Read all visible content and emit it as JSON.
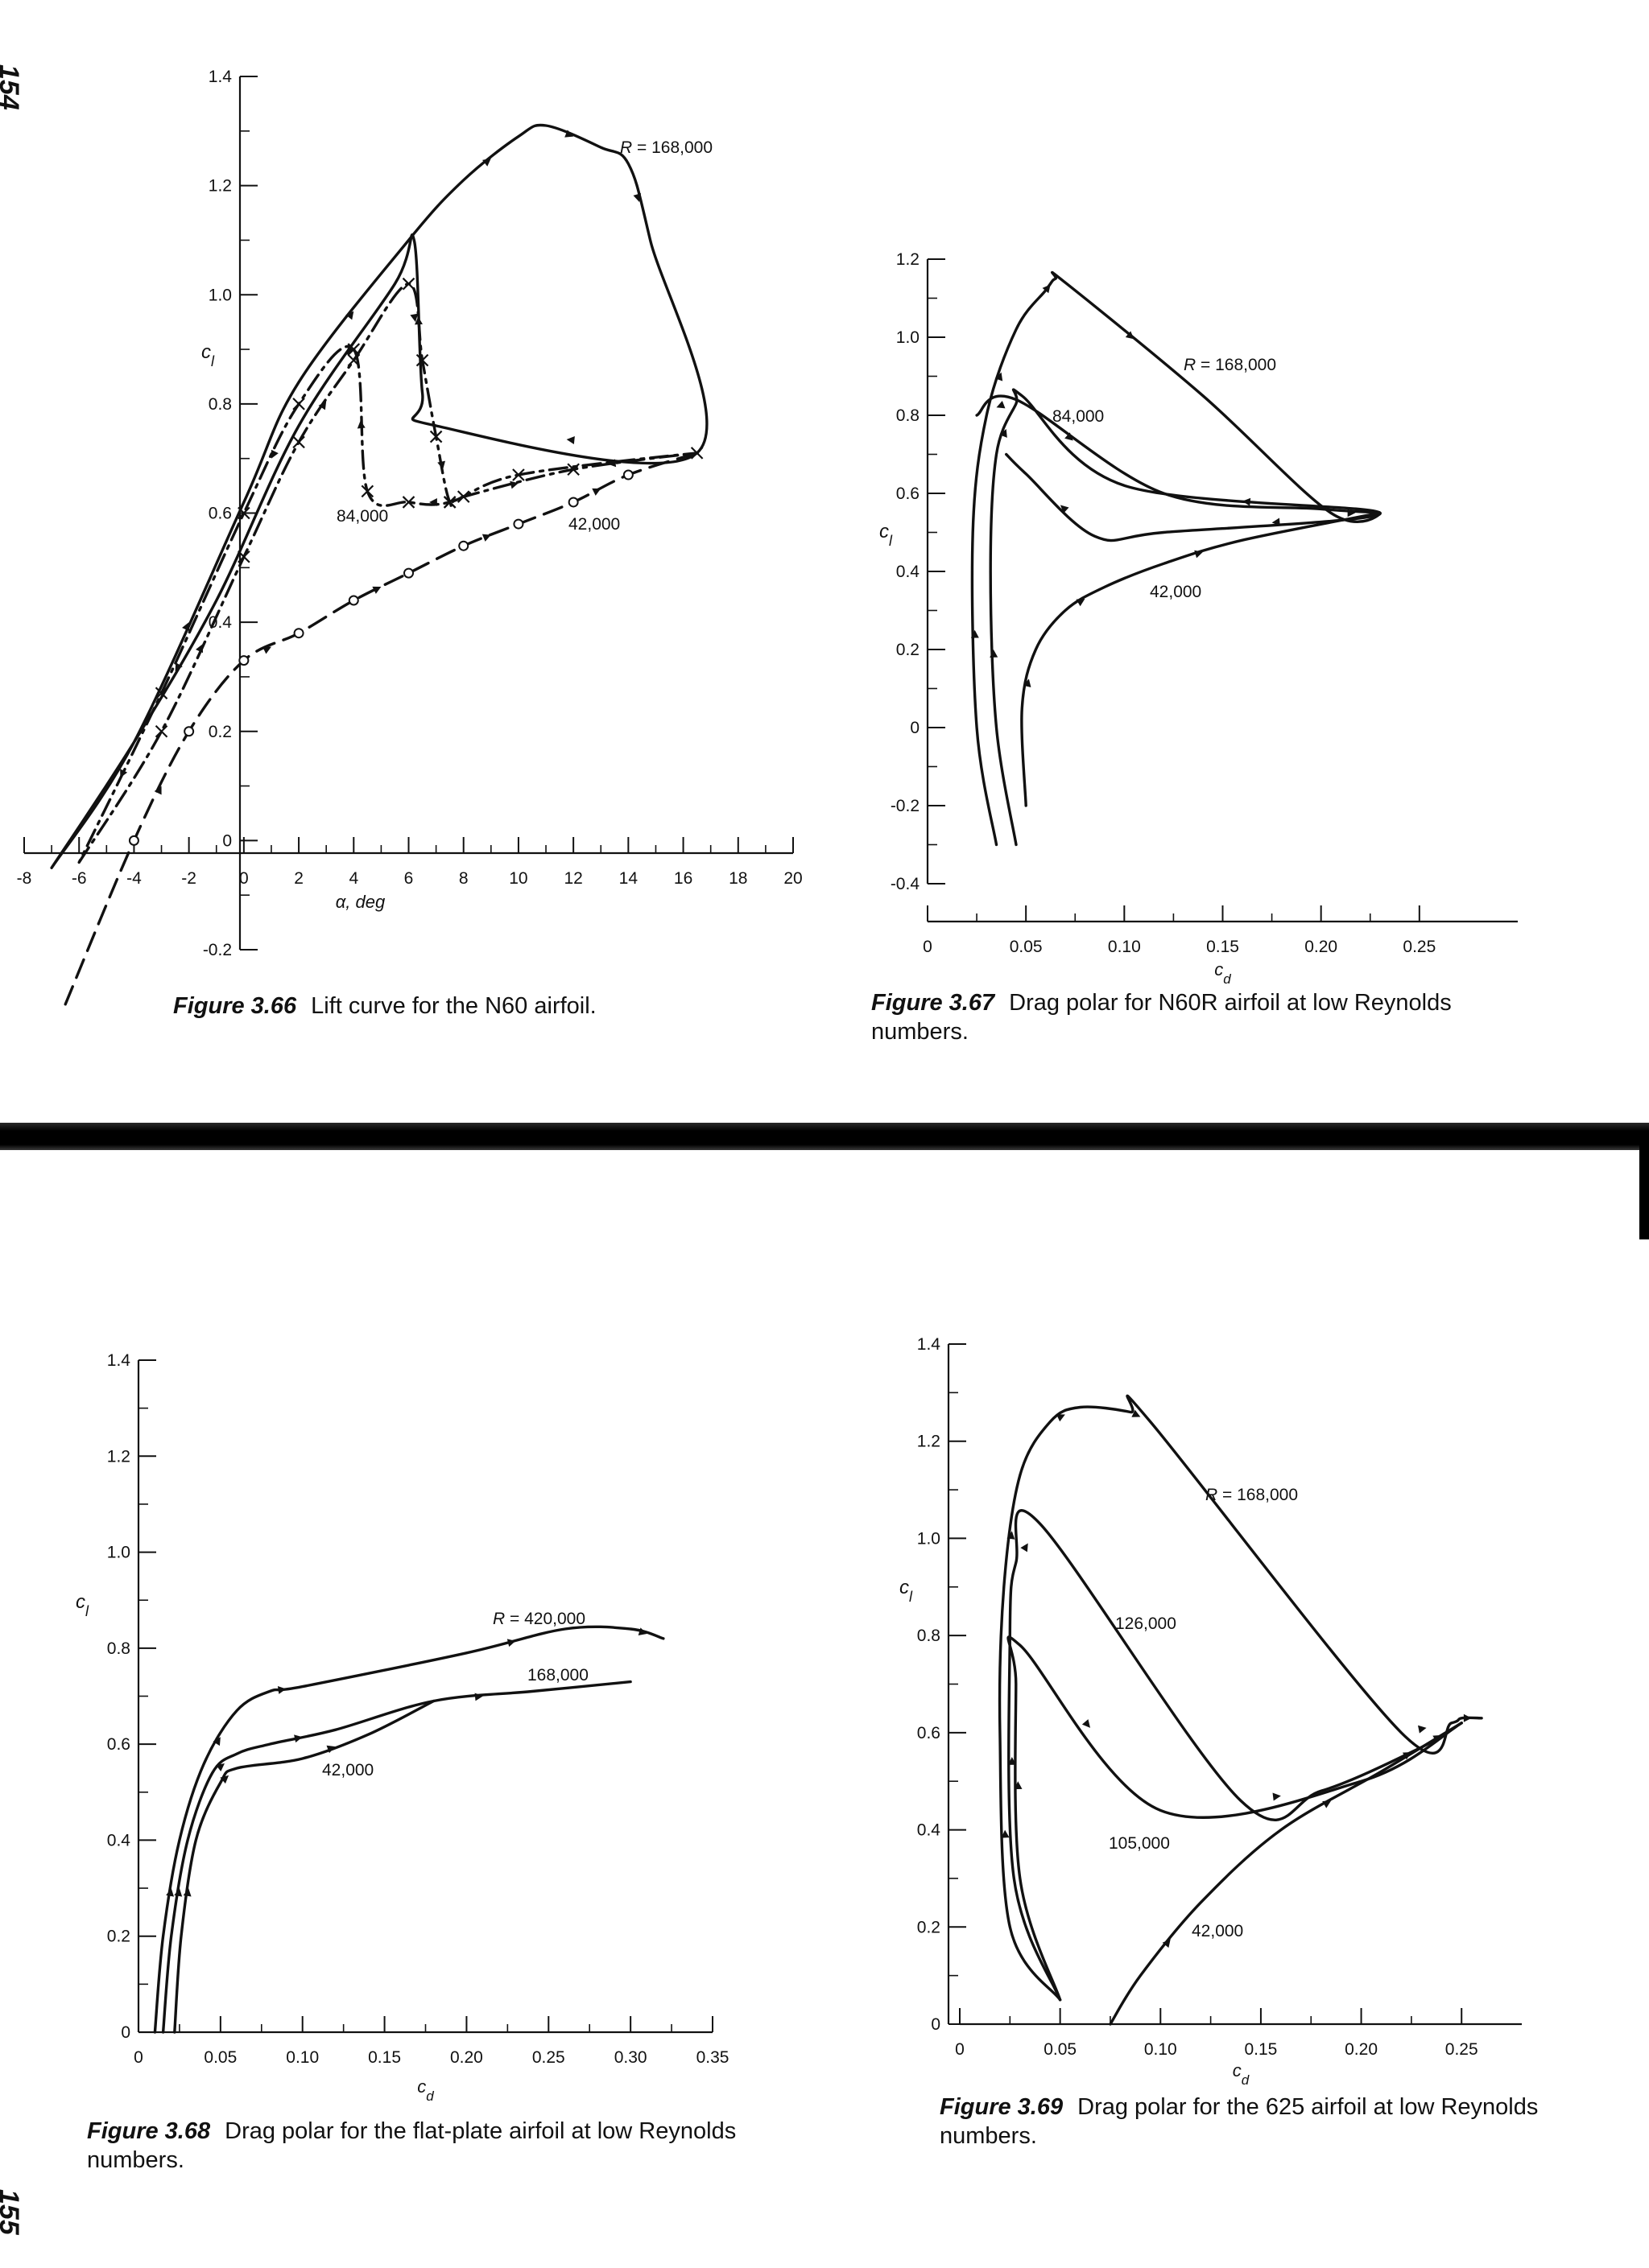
{
  "pages": {
    "top": "154",
    "bottom": "155"
  },
  "captions": [
    {
      "number": "Figure 3.66",
      "text": "Lift curve for the N60 airfoil."
    },
    {
      "number": "Figure 3.67",
      "text": "Drag polar for N60R airfoil at low Reynolds numbers."
    },
    {
      "number": "Figure 3.68",
      "text": "Drag polar for the flat-plate airfoil at low Reynolds numbers."
    },
    {
      "number": "Figure 3.69",
      "text": "Drag polar for the 625 airfoil at low Reynolds numbers."
    }
  ],
  "colors": {
    "ink": "#111111",
    "paper": "#ffffff"
  },
  "chart_data": [
    {
      "id": "fig366",
      "type": "line",
      "xlabel": "α, deg",
      "ylabel": "c_l",
      "xlim": [
        -8,
        20
      ],
      "ylim": [
        -0.2,
        1.4
      ],
      "xticks": [
        -8,
        -6,
        -4,
        -2,
        0,
        2,
        4,
        6,
        8,
        10,
        12,
        14,
        16,
        18,
        20
      ],
      "yticks": [
        -0.2,
        0,
        0.2,
        0.4,
        0.6,
        0.8,
        1.0,
        1.2,
        1.4
      ],
      "ytick_labels": [
        "-0.2",
        "0",
        "0.2",
        "0.4",
        "0.6",
        "0.8",
        "1.0",
        "1.2",
        "1.4"
      ],
      "series": [
        {
          "name": "R = 168,000",
          "style": "solid",
          "x": [
            -7,
            -4,
            0,
            2,
            6,
            8,
            10,
            11,
            13,
            14,
            14.8,
            16.5,
            7,
            6.5,
            6.2,
            5.5,
            2,
            -1,
            -4,
            -7
          ],
          "y": [
            -0.05,
            0.18,
            0.62,
            0.84,
            1.1,
            1.21,
            1.29,
            1.31,
            1.27,
            1.24,
            1.1,
            0.71,
            0.76,
            0.82,
            1.1,
            1.02,
            0.76,
            0.44,
            0.18,
            -0.05
          ]
        },
        {
          "name": "84,000",
          "style": "dash-cross",
          "x": [
            -6,
            -3,
            0,
            2,
            4,
            6,
            6.5,
            7,
            7.5,
            8,
            12,
            16.5,
            10,
            7.5,
            6,
            4.5,
            4,
            2,
            0,
            -3,
            -6
          ],
          "y": [
            -0.04,
            0.2,
            0.52,
            0.73,
            0.88,
            1.02,
            0.88,
            0.74,
            0.62,
            0.63,
            0.68,
            0.71,
            0.67,
            0.62,
            0.62,
            0.64,
            0.9,
            0.8,
            0.6,
            0.27,
            -0.04
          ]
        },
        {
          "name": "42,000",
          "style": "dash-circle",
          "x": [
            -6.5,
            -4,
            -2,
            0,
            2,
            4,
            6,
            8,
            10,
            12,
            14,
            16.5
          ],
          "y": [
            -0.3,
            0.0,
            0.2,
            0.33,
            0.38,
            0.44,
            0.49,
            0.54,
            0.58,
            0.62,
            0.67,
            0.71
          ]
        }
      ]
    },
    {
      "id": "fig367",
      "type": "line",
      "xlabel": "c_d",
      "ylabel": "c_l",
      "xlim": [
        0,
        0.3
      ],
      "ylim": [
        -0.4,
        1.2
      ],
      "xticks": [
        0,
        0.05,
        0.1,
        0.15,
        0.2,
        0.25
      ],
      "xtick_labels": [
        "0",
        "0.05",
        "0.10",
        "0.15",
        "0.20",
        "0.25"
      ],
      "yticks": [
        -0.4,
        -0.2,
        0,
        0.2,
        0.4,
        0.6,
        0.8,
        1.0,
        1.2
      ],
      "ytick_labels": [
        "-0.4",
        "-0.2",
        "0",
        "0.2",
        "0.4",
        "0.6",
        "0.8",
        "1.0",
        "1.2"
      ],
      "series": [
        {
          "name": "R = 168,000",
          "x": [
            0.035,
            0.025,
            0.023,
            0.03,
            0.045,
            0.06,
            0.065,
            0.07,
            0.14,
            0.205,
            0.23,
            0.2,
            0.12,
            0.045,
            0.025
          ],
          "y": [
            -0.3,
            0.0,
            0.5,
            0.8,
            1.02,
            1.12,
            1.15,
            1.14,
            0.85,
            0.55,
            0.55,
            0.56,
            0.6,
            0.84,
            0.8
          ]
        },
        {
          "name": "84,000",
          "x": [
            0.045,
            0.035,
            0.032,
            0.035,
            0.045,
            0.048,
            0.1,
            0.23,
            0.12,
            0.085,
            0.05,
            0.04
          ],
          "y": [
            -0.3,
            0.0,
            0.4,
            0.7,
            0.83,
            0.85,
            0.62,
            0.55,
            0.5,
            0.49,
            0.65,
            0.7
          ]
        },
        {
          "name": "42,000",
          "x": [
            0.05,
            0.048,
            0.055,
            0.07,
            0.09,
            0.12,
            0.16,
            0.23
          ],
          "y": [
            -0.2,
            0.05,
            0.2,
            0.3,
            0.36,
            0.42,
            0.48,
            0.55
          ]
        }
      ]
    },
    {
      "id": "fig368",
      "type": "line",
      "xlabel": "c_d",
      "ylabel": "c_l",
      "xlim": [
        0,
        0.35
      ],
      "ylim": [
        0,
        1.4
      ],
      "xticks": [
        0,
        0.05,
        0.1,
        0.15,
        0.2,
        0.25,
        0.3,
        0.35
      ],
      "xtick_labels": [
        "0",
        "0.05",
        "0.10",
        "0.15",
        "0.20",
        "0.25",
        "0.30",
        "0.35"
      ],
      "yticks": [
        0,
        0.2,
        0.4,
        0.6,
        0.8,
        1.0,
        1.2,
        1.4
      ],
      "ytick_labels": [
        "0",
        "0.2",
        "0.4",
        "0.6",
        "0.8",
        "1.0",
        "1.2",
        "1.4"
      ],
      "series": [
        {
          "name": "R = 420,000",
          "x": [
            0.01,
            0.015,
            0.025,
            0.04,
            0.06,
            0.08,
            0.1,
            0.2,
            0.26,
            0.3,
            0.32
          ],
          "y": [
            0.0,
            0.2,
            0.4,
            0.56,
            0.67,
            0.71,
            0.72,
            0.79,
            0.84,
            0.84,
            0.82
          ]
        },
        {
          "name": "168,000",
          "x": [
            0.015,
            0.02,
            0.03,
            0.045,
            0.06,
            0.08,
            0.12,
            0.18,
            0.24,
            0.3
          ],
          "y": [
            0.0,
            0.2,
            0.4,
            0.54,
            0.58,
            0.6,
            0.63,
            0.69,
            0.71,
            0.73
          ]
        },
        {
          "name": "42,000",
          "x": [
            0.022,
            0.026,
            0.035,
            0.05,
            0.06,
            0.1,
            0.14,
            0.18
          ],
          "y": [
            0.0,
            0.2,
            0.4,
            0.52,
            0.55,
            0.57,
            0.62,
            0.69
          ]
        }
      ]
    },
    {
      "id": "fig369",
      "type": "line",
      "xlabel": "c_d",
      "ylabel": "c_l",
      "xlim": [
        0,
        0.28
      ],
      "ylim": [
        0,
        1.4
      ],
      "xticks": [
        0,
        0.05,
        0.1,
        0.15,
        0.2,
        0.25
      ],
      "xtick_labels": [
        "0",
        "0.05",
        "0.10",
        "0.15",
        "0.20",
        "0.25"
      ],
      "yticks": [
        0,
        0.2,
        0.4,
        0.6,
        0.8,
        1.0,
        1.2,
        1.4
      ],
      "ytick_labels": [
        "0",
        "0.2",
        "0.4",
        "0.6",
        "0.8",
        "1.0",
        "1.2",
        "1.4"
      ],
      "series": [
        {
          "name": "R = 168,000",
          "x": [
            0.05,
            0.025,
            0.02,
            0.022,
            0.03,
            0.045,
            0.06,
            0.085,
            0.095,
            0.22,
            0.245,
            0.25,
            0.26
          ],
          "y": [
            0.05,
            0.2,
            0.6,
            0.9,
            1.13,
            1.24,
            1.27,
            1.26,
            1.24,
            0.6,
            0.62,
            0.63,
            0.63
          ]
        },
        {
          "name": "126,000",
          "x": [
            0.05,
            0.027,
            0.025,
            0.028,
            0.04,
            0.14,
            0.18,
            0.23,
            0.25
          ],
          "y": [
            0.05,
            0.3,
            0.8,
            0.95,
            1.03,
            0.46,
            0.48,
            0.57,
            0.62
          ]
        },
        {
          "name": "105,000",
          "x": [
            0.05,
            0.03,
            0.028,
            0.03,
            0.1,
            0.2,
            0.25
          ],
          "y": [
            0.05,
            0.3,
            0.7,
            0.78,
            0.44,
            0.5,
            0.62
          ]
        },
        {
          "name": "42,000",
          "x": [
            0.075,
            0.09,
            0.12,
            0.16,
            0.21,
            0.25
          ],
          "y": [
            0.0,
            0.1,
            0.25,
            0.4,
            0.52,
            0.62
          ]
        }
      ]
    }
  ]
}
